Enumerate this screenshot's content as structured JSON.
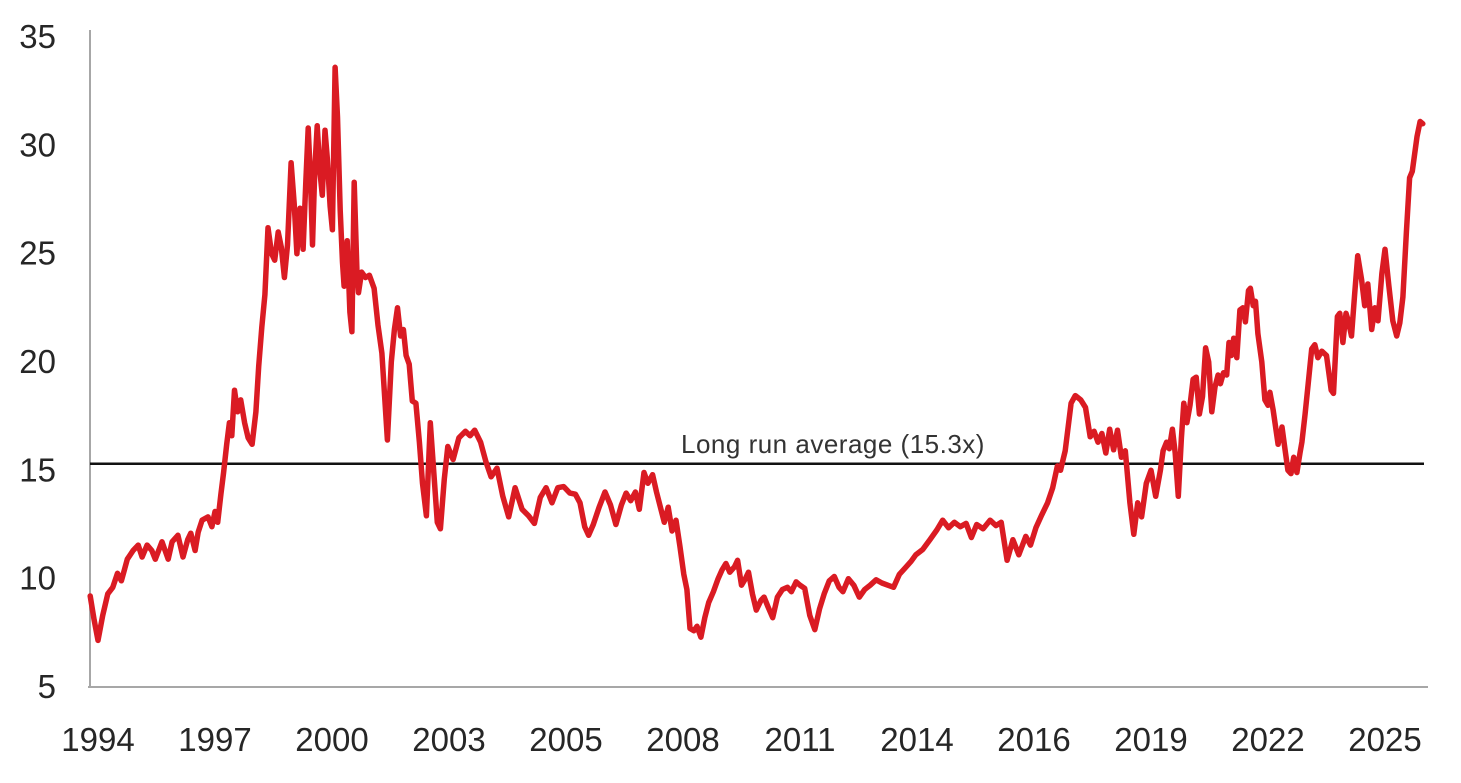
{
  "chart_data": {
    "type": "line",
    "title": "",
    "description": "Red time-series line of a valuation multiple (x) from 1994 to 2025 with a black long-run average reference line",
    "legend_position": "none",
    "grid": false,
    "colors": {
      "series_line": "#da1b23",
      "average_line": "#111111",
      "axis_line": "#a7a7a7",
      "tick_text": "#262626",
      "annotation_text": "#333333"
    },
    "average_line": {
      "label": "Long run average (15.3x)",
      "value": 15.3
    },
    "y_axis": {
      "ticks": [
        5,
        10,
        15,
        20,
        25,
        30,
        35
      ],
      "range": [
        5,
        35
      ]
    },
    "x_axis": {
      "tick_labels": [
        "1994",
        "1997",
        "2000",
        "2003",
        "2005",
        "2008",
        "2011",
        "2014",
        "2016",
        "2019",
        "2022",
        "2025"
      ],
      "tick_years": [
        1994,
        1997,
        2000,
        2003,
        2005,
        2008,
        2011,
        2014,
        2016,
        2019,
        2022,
        2025
      ]
    },
    "points": [
      [
        1993.8,
        9.2
      ],
      [
        1993.9,
        8.1
      ],
      [
        1994.0,
        7.15
      ],
      [
        1994.12,
        8.3
      ],
      [
        1994.25,
        9.3
      ],
      [
        1994.38,
        9.6
      ],
      [
        1994.5,
        10.25
      ],
      [
        1994.6,
        9.9
      ],
      [
        1994.75,
        10.9
      ],
      [
        1994.9,
        11.3
      ],
      [
        1995.03,
        11.55
      ],
      [
        1995.13,
        11.0
      ],
      [
        1995.26,
        11.55
      ],
      [
        1995.38,
        11.3
      ],
      [
        1995.47,
        10.9
      ],
      [
        1995.64,
        11.7
      ],
      [
        1995.72,
        11.3
      ],
      [
        1995.8,
        10.9
      ],
      [
        1995.9,
        11.7
      ],
      [
        1996.05,
        12.0
      ],
      [
        1996.18,
        11.0
      ],
      [
        1996.3,
        11.8
      ],
      [
        1996.38,
        12.1
      ],
      [
        1996.49,
        11.3
      ],
      [
        1996.57,
        12.15
      ],
      [
        1996.67,
        12.7
      ],
      [
        1996.82,
        12.85
      ],
      [
        1996.92,
        12.4
      ],
      [
        1997.0,
        13.1
      ],
      [
        1997.07,
        12.6
      ],
      [
        1997.15,
        13.9
      ],
      [
        1997.22,
        14.9
      ],
      [
        1997.3,
        16.2
      ],
      [
        1997.37,
        17.2
      ],
      [
        1997.43,
        16.6
      ],
      [
        1997.5,
        18.7
      ],
      [
        1997.58,
        17.7
      ],
      [
        1997.66,
        18.25
      ],
      [
        1997.76,
        17.2
      ],
      [
        1997.85,
        16.5
      ],
      [
        1997.95,
        16.2
      ],
      [
        1998.05,
        17.7
      ],
      [
        1998.12,
        19.8
      ],
      [
        1998.2,
        21.6
      ],
      [
        1998.28,
        23.1
      ],
      [
        1998.36,
        26.2
      ],
      [
        1998.45,
        25.0
      ],
      [
        1998.53,
        24.7
      ],
      [
        1998.62,
        26.0
      ],
      [
        1998.7,
        25.3
      ],
      [
        1998.78,
        23.9
      ],
      [
        1998.86,
        25.4
      ],
      [
        1998.95,
        29.2
      ],
      [
        1999.03,
        27.3
      ],
      [
        1999.1,
        25.0
      ],
      [
        1999.18,
        27.1
      ],
      [
        1999.26,
        25.2
      ],
      [
        1999.33,
        28.4
      ],
      [
        1999.39,
        30.8
      ],
      [
        1999.45,
        28.3
      ],
      [
        1999.5,
        25.4
      ],
      [
        1999.56,
        28.9
      ],
      [
        1999.62,
        30.9
      ],
      [
        1999.69,
        28.8
      ],
      [
        1999.75,
        27.7
      ],
      [
        1999.82,
        30.7
      ],
      [
        1999.88,
        29.4
      ],
      [
        1999.95,
        27.2
      ],
      [
        2000.01,
        26.1
      ],
      [
        2000.08,
        33.6
      ],
      [
        2000.14,
        31.3
      ],
      [
        2000.21,
        27.0
      ],
      [
        2000.27,
        24.6
      ],
      [
        2000.31,
        23.5
      ],
      [
        2000.39,
        25.6
      ],
      [
        2000.46,
        22.3
      ],
      [
        2000.51,
        21.4
      ],
      [
        2000.57,
        28.3
      ],
      [
        2000.64,
        24.1
      ],
      [
        2000.68,
        23.2
      ],
      [
        2000.76,
        24.15
      ],
      [
        2000.86,
        23.9
      ],
      [
        2000.96,
        24.0
      ],
      [
        2001.08,
        23.4
      ],
      [
        2001.18,
        21.7
      ],
      [
        2001.28,
        20.4
      ],
      [
        2001.42,
        16.4
      ],
      [
        2001.52,
        20.0
      ],
      [
        2001.6,
        21.5
      ],
      [
        2001.68,
        22.5
      ],
      [
        2001.76,
        21.2
      ],
      [
        2001.83,
        21.5
      ],
      [
        2001.9,
        20.3
      ],
      [
        2001.98,
        19.9
      ],
      [
        2002.06,
        18.2
      ],
      [
        2002.15,
        18.1
      ],
      [
        2002.24,
        16.3
      ],
      [
        2002.32,
        14.4
      ],
      [
        2002.42,
        12.9
      ],
      [
        2002.52,
        17.2
      ],
      [
        2002.61,
        14.9
      ],
      [
        2002.7,
        12.6
      ],
      [
        2002.78,
        12.3
      ],
      [
        2002.88,
        14.6
      ],
      [
        2002.97,
        16.1
      ],
      [
        2003.07,
        15.5
      ],
      [
        2003.17,
        16.5
      ],
      [
        2003.28,
        16.8
      ],
      [
        2003.36,
        16.6
      ],
      [
        2003.44,
        16.85
      ],
      [
        2003.54,
        16.3
      ],
      [
        2003.63,
        15.4
      ],
      [
        2003.72,
        14.7
      ],
      [
        2003.82,
        15.1
      ],
      [
        2003.92,
        13.8
      ],
      [
        2004.02,
        12.85
      ],
      [
        2004.13,
        14.2
      ],
      [
        2004.25,
        13.2
      ],
      [
        2004.36,
        12.9
      ],
      [
        2004.46,
        12.55
      ],
      [
        2004.56,
        13.75
      ],
      [
        2004.66,
        14.2
      ],
      [
        2004.76,
        13.5
      ],
      [
        2004.86,
        14.2
      ],
      [
        2004.96,
        14.25
      ],
      [
        2005.1,
        13.95
      ],
      [
        2005.24,
        13.9
      ],
      [
        2005.36,
        13.5
      ],
      [
        2005.48,
        12.4
      ],
      [
        2005.58,
        12.0
      ],
      [
        2005.7,
        12.5
      ],
      [
        2005.85,
        13.3
      ],
      [
        2006.0,
        14.0
      ],
      [
        2006.14,
        13.4
      ],
      [
        2006.28,
        12.5
      ],
      [
        2006.42,
        13.4
      ],
      [
        2006.54,
        13.95
      ],
      [
        2006.66,
        13.6
      ],
      [
        2006.78,
        14.0
      ],
      [
        2006.88,
        13.2
      ],
      [
        2007.0,
        14.9
      ],
      [
        2007.1,
        14.4
      ],
      [
        2007.22,
        14.8
      ],
      [
        2007.32,
        14.0
      ],
      [
        2007.42,
        13.3
      ],
      [
        2007.52,
        12.6
      ],
      [
        2007.62,
        13.3
      ],
      [
        2007.72,
        12.2
      ],
      [
        2007.82,
        12.7
      ],
      [
        2007.92,
        11.5
      ],
      [
        2008.02,
        10.2
      ],
      [
        2008.1,
        9.5
      ],
      [
        2008.18,
        7.7
      ],
      [
        2008.28,
        7.6
      ],
      [
        2008.36,
        7.8
      ],
      [
        2008.46,
        7.3
      ],
      [
        2008.56,
        8.2
      ],
      [
        2008.66,
        8.9
      ],
      [
        2008.78,
        9.4
      ],
      [
        2008.9,
        10.0
      ],
      [
        2009.0,
        10.4
      ],
      [
        2009.1,
        10.7
      ],
      [
        2009.2,
        10.3
      ],
      [
        2009.32,
        10.55
      ],
      [
        2009.4,
        10.85
      ],
      [
        2009.5,
        9.7
      ],
      [
        2009.6,
        10.0
      ],
      [
        2009.68,
        10.3
      ],
      [
        2009.78,
        9.3
      ],
      [
        2009.88,
        8.55
      ],
      [
        2010.0,
        9.0
      ],
      [
        2010.08,
        9.15
      ],
      [
        2010.18,
        8.7
      ],
      [
        2010.3,
        8.2
      ],
      [
        2010.42,
        9.15
      ],
      [
        2010.55,
        9.5
      ],
      [
        2010.68,
        9.6
      ],
      [
        2010.78,
        9.4
      ],
      [
        2010.9,
        9.85
      ],
      [
        2011.0,
        9.7
      ],
      [
        2011.12,
        9.55
      ],
      [
        2011.25,
        8.3
      ],
      [
        2011.38,
        7.65
      ],
      [
        2011.5,
        8.6
      ],
      [
        2011.62,
        9.3
      ],
      [
        2011.75,
        9.9
      ],
      [
        2011.88,
        10.1
      ],
      [
        2012.0,
        9.6
      ],
      [
        2012.1,
        9.4
      ],
      [
        2012.24,
        10.0
      ],
      [
        2012.38,
        9.7
      ],
      [
        2012.52,
        9.15
      ],
      [
        2012.66,
        9.5
      ],
      [
        2012.8,
        9.7
      ],
      [
        2012.95,
        9.95
      ],
      [
        2013.1,
        9.8
      ],
      [
        2013.25,
        9.7
      ],
      [
        2013.4,
        9.6
      ],
      [
        2013.55,
        10.2
      ],
      [
        2013.7,
        10.5
      ],
      [
        2013.85,
        10.8
      ],
      [
        2013.97,
        11.1
      ],
      [
        2014.1,
        11.35
      ],
      [
        2014.22,
        11.8
      ],
      [
        2014.34,
        12.25
      ],
      [
        2014.44,
        12.7
      ],
      [
        2014.54,
        12.35
      ],
      [
        2014.64,
        12.6
      ],
      [
        2014.74,
        12.4
      ],
      [
        2014.84,
        12.55
      ],
      [
        2014.93,
        11.9
      ],
      [
        2015.02,
        12.5
      ],
      [
        2015.13,
        12.3
      ],
      [
        2015.25,
        12.7
      ],
      [
        2015.35,
        12.45
      ],
      [
        2015.44,
        12.6
      ],
      [
        2015.54,
        10.85
      ],
      [
        2015.64,
        11.8
      ],
      [
        2015.74,
        11.1
      ],
      [
        2015.86,
        11.95
      ],
      [
        2015.94,
        11.55
      ],
      [
        2016.05,
        12.35
      ],
      [
        2016.2,
        12.95
      ],
      [
        2016.35,
        13.5
      ],
      [
        2016.48,
        14.2
      ],
      [
        2016.6,
        15.2
      ],
      [
        2016.68,
        15.0
      ],
      [
        2016.8,
        15.9
      ],
      [
        2016.95,
        18.1
      ],
      [
        2017.06,
        18.45
      ],
      [
        2017.2,
        18.25
      ],
      [
        2017.32,
        17.9
      ],
      [
        2017.44,
        16.55
      ],
      [
        2017.54,
        16.8
      ],
      [
        2017.64,
        16.3
      ],
      [
        2017.74,
        16.7
      ],
      [
        2017.84,
        15.8
      ],
      [
        2017.94,
        16.9
      ],
      [
        2018.04,
        15.95
      ],
      [
        2018.14,
        16.85
      ],
      [
        2018.24,
        15.6
      ],
      [
        2018.34,
        15.9
      ],
      [
        2018.46,
        13.5
      ],
      [
        2018.56,
        12.05
      ],
      [
        2018.66,
        13.5
      ],
      [
        2018.76,
        12.85
      ],
      [
        2018.88,
        14.4
      ],
      [
        2019.0,
        15.0
      ],
      [
        2019.12,
        13.8
      ],
      [
        2019.24,
        15.0
      ],
      [
        2019.31,
        15.9
      ],
      [
        2019.4,
        16.3
      ],
      [
        2019.47,
        16.0
      ],
      [
        2019.55,
        16.9
      ],
      [
        2019.62,
        15.8
      ],
      [
        2019.7,
        13.8
      ],
      [
        2019.78,
        16.5
      ],
      [
        2019.84,
        18.1
      ],
      [
        2019.92,
        17.2
      ],
      [
        2020.0,
        18.0
      ],
      [
        2020.08,
        19.2
      ],
      [
        2020.16,
        19.3
      ],
      [
        2020.24,
        17.6
      ],
      [
        2020.32,
        18.4
      ],
      [
        2020.4,
        20.65
      ],
      [
        2020.48,
        20.0
      ],
      [
        2020.56,
        17.7
      ],
      [
        2020.64,
        18.85
      ],
      [
        2020.72,
        19.4
      ],
      [
        2020.78,
        19.0
      ],
      [
        2020.86,
        19.5
      ],
      [
        2020.94,
        19.4
      ],
      [
        2021.0,
        20.9
      ],
      [
        2021.06,
        20.3
      ],
      [
        2021.12,
        21.1
      ],
      [
        2021.2,
        20.2
      ],
      [
        2021.28,
        22.4
      ],
      [
        2021.36,
        22.5
      ],
      [
        2021.42,
        21.85
      ],
      [
        2021.5,
        23.3
      ],
      [
        2021.55,
        23.4
      ],
      [
        2021.62,
        22.6
      ],
      [
        2021.68,
        22.8
      ],
      [
        2021.74,
        21.3
      ],
      [
        2021.84,
        20.0
      ],
      [
        2021.92,
        18.25
      ],
      [
        2022.0,
        18.0
      ],
      [
        2022.05,
        18.6
      ],
      [
        2022.13,
        17.8
      ],
      [
        2022.26,
        16.2
      ],
      [
        2022.36,
        17.0
      ],
      [
        2022.44,
        15.9
      ],
      [
        2022.51,
        15.0
      ],
      [
        2022.59,
        14.85
      ],
      [
        2022.66,
        15.6
      ],
      [
        2022.74,
        14.9
      ],
      [
        2022.82,
        15.8
      ],
      [
        2022.87,
        16.3
      ],
      [
        2022.95,
        17.6
      ],
      [
        2023.03,
        19.0
      ],
      [
        2023.12,
        20.6
      ],
      [
        2023.2,
        20.8
      ],
      [
        2023.28,
        20.2
      ],
      [
        2023.38,
        20.5
      ],
      [
        2023.5,
        20.3
      ],
      [
        2023.62,
        18.7
      ],
      [
        2023.68,
        18.55
      ],
      [
        2023.78,
        22.1
      ],
      [
        2023.84,
        22.25
      ],
      [
        2023.92,
        20.9
      ],
      [
        2024.0,
        22.25
      ],
      [
        2024.06,
        21.9
      ],
      [
        2024.14,
        21.2
      ],
      [
        2024.22,
        23.1
      ],
      [
        2024.3,
        24.9
      ],
      [
        2024.4,
        23.8
      ],
      [
        2024.48,
        22.6
      ],
      [
        2024.56,
        23.6
      ],
      [
        2024.66,
        21.5
      ],
      [
        2024.74,
        22.5
      ],
      [
        2024.82,
        21.9
      ],
      [
        2024.92,
        24.1
      ],
      [
        2025.0,
        25.2
      ],
      [
        2025.1,
        23.5
      ],
      [
        2025.2,
        21.9
      ],
      [
        2025.3,
        21.2
      ],
      [
        2025.38,
        21.8
      ],
      [
        2025.46,
        23.0
      ],
      [
        2025.55,
        26.0
      ],
      [
        2025.63,
        28.5
      ],
      [
        2025.7,
        28.8
      ],
      [
        2025.82,
        30.4
      ],
      [
        2025.9,
        31.1
      ],
      [
        2025.97,
        31.0
      ]
    ]
  }
}
